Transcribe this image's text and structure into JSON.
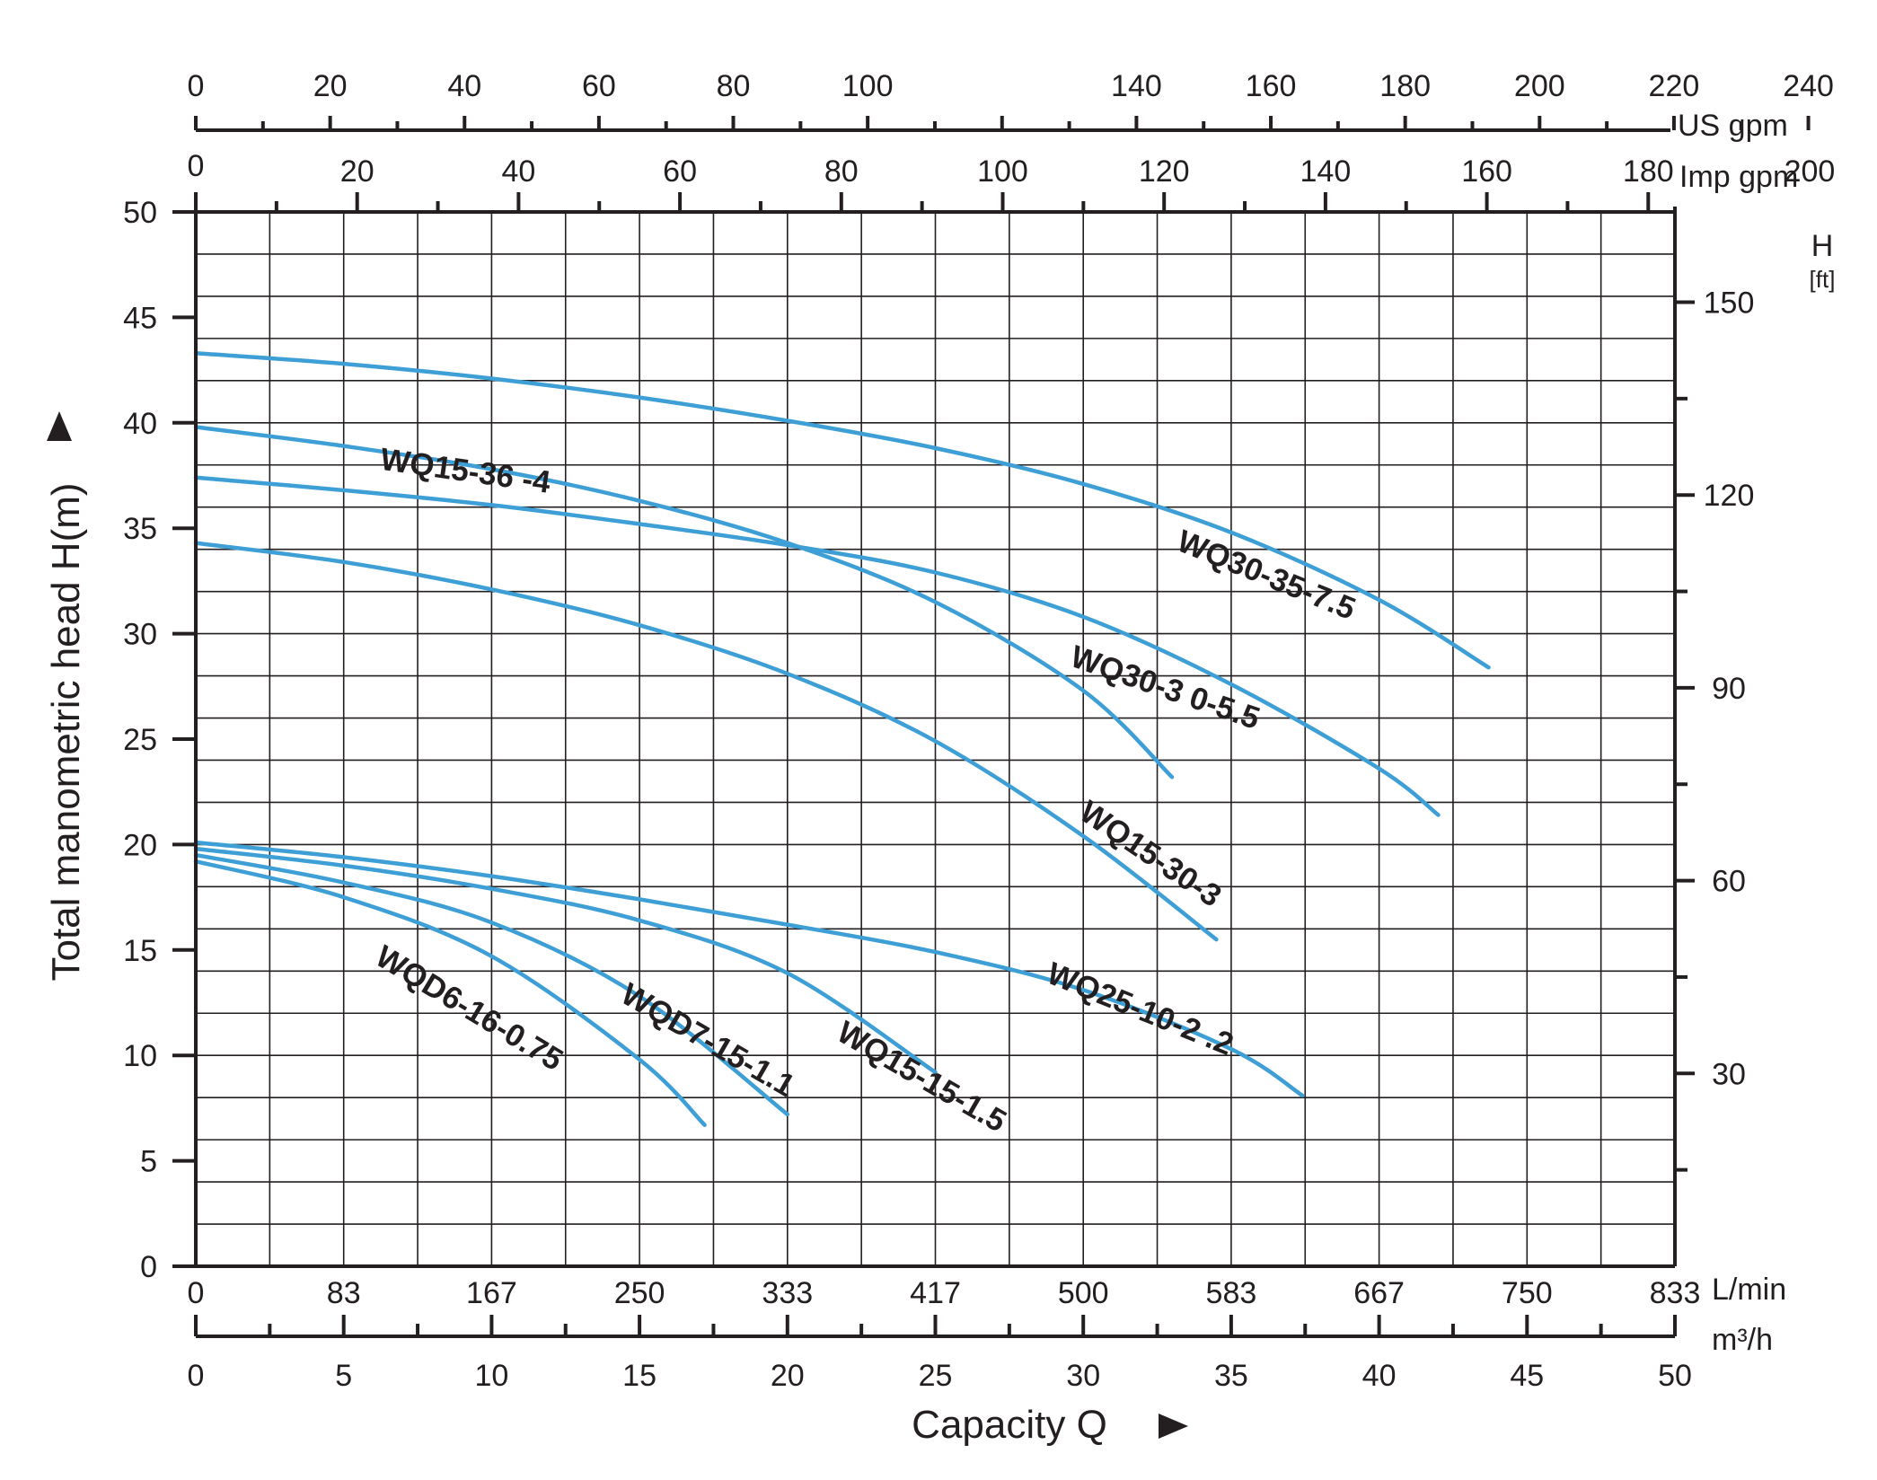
{
  "chart_data": {
    "type": "line",
    "xlabel": "Capacity Q",
    "ylabel": "Total manometric head H(m)",
    "x_unit": "m³/h",
    "y_unit": "m",
    "xlim": [
      0,
      50
    ],
    "ylim": [
      0,
      50
    ],
    "grid": true,
    "curve_color": "#3d9fd6",
    "axis_color": "#231f20",
    "x_ticks": [
      "0",
      "5",
      "10",
      "15",
      "20",
      "25",
      "30",
      "35",
      "40",
      "45",
      "50"
    ],
    "y_ticks": [
      "0",
      "5",
      "10",
      "15",
      "20",
      "25",
      "30",
      "35",
      "40",
      "45",
      "50"
    ],
    "lmin_axis": {
      "unit": "L/min",
      "ticks": [
        "0",
        "83",
        "167",
        "250",
        "333",
        "417",
        "500",
        "583",
        "667",
        "750",
        "833"
      ]
    },
    "m3h_axis": {
      "unit": "m³/h"
    },
    "usgpm_axis": {
      "unit": "US gpm",
      "ticks": [
        "0",
        "20",
        "40",
        "60",
        "80",
        "100",
        "140",
        "160",
        "180",
        "200",
        "220",
        "240"
      ]
    },
    "impgpm_axis": {
      "unit": "Imp gpm",
      "ticks": [
        "0",
        "20",
        "40",
        "60",
        "80",
        "100",
        "120",
        "140",
        "160",
        "180",
        "200"
      ]
    },
    "ft_axis": {
      "unit": "H",
      "unit2": "[ft]",
      "ticks": [
        "30",
        "60",
        "90",
        "120",
        "150"
      ]
    },
    "series": [
      {
        "name": "WQ30-35-7.5",
        "x": [
          0,
          5,
          10,
          15,
          20,
          25,
          30,
          35,
          40,
          43.7
        ],
        "y": [
          43.3,
          42.8,
          42.1,
          41.2,
          40.1,
          38.8,
          37.1,
          34.8,
          31.6,
          28.4
        ]
      },
      {
        "name": "WQ15-36 -4",
        "x": [
          0,
          5,
          10,
          15,
          20,
          25,
          30,
          33
        ],
        "y": [
          39.8,
          38.9,
          37.8,
          36.3,
          34.3,
          31.5,
          27.3,
          23.2
        ]
      },
      {
        "name": "WQ30-3 0-5.5",
        "x": [
          0,
          5,
          10,
          15,
          20,
          25,
          30,
          35,
          40,
          42
        ],
        "y": [
          37.4,
          36.8,
          36.1,
          35.2,
          34.2,
          32.9,
          30.8,
          27.6,
          23.6,
          21.4
        ]
      },
      {
        "name": "WQ15-30-3",
        "x": [
          0,
          5,
          10,
          15,
          20,
          25,
          30,
          34.5
        ],
        "y": [
          34.3,
          33.4,
          32.1,
          30.4,
          28.1,
          24.9,
          20.4,
          15.5
        ]
      },
      {
        "name": "WQ25-10-2 .2",
        "x": [
          0,
          5,
          10,
          15,
          20,
          25,
          30,
          35,
          37.4
        ],
        "y": [
          20.1,
          19.4,
          18.5,
          17.4,
          16.2,
          14.9,
          13.1,
          10.3,
          8.1
        ]
      },
      {
        "name": "WQ15-15-1.5",
        "x": [
          0,
          5,
          10,
          15,
          20,
          25
        ],
        "y": [
          19.8,
          19.0,
          17.9,
          16.4,
          13.9,
          9.2
        ]
      },
      {
        "name": "WQD7-15-1.1",
        "x": [
          0,
          5,
          10,
          15,
          20
        ],
        "y": [
          19.5,
          18.2,
          16.3,
          12.8,
          7.2
        ]
      },
      {
        "name": "WQD6-16-0.75",
        "x": [
          0,
          5,
          10,
          15,
          17.2
        ],
        "y": [
          19.2,
          17.5,
          14.7,
          9.8,
          6.7
        ]
      }
    ],
    "annotations": [
      {
        "text": "WQ15-36 -4",
        "at": [
          6.2,
          37.8
        ],
        "angle": 8
      },
      {
        "text": "WQ30-35-7.5",
        "at": [
          33.1,
          34.0
        ],
        "angle": 22
      },
      {
        "text": "WQ30-3 0-5.5",
        "at": [
          29.5,
          28.5
        ],
        "angle": 19
      },
      {
        "text": "WQ15-30-3",
        "at": [
          29.8,
          21.3
        ],
        "angle": 34
      },
      {
        "text": "WQ25-10-2 .2",
        "at": [
          28.7,
          13.5
        ],
        "angle": 22
      },
      {
        "text": "WQ15-15-1.5",
        "at": [
          21.6,
          10.8
        ],
        "angle": 30
      },
      {
        "text": "WQD7-15-1.1",
        "at": [
          14.3,
          12.6
        ],
        "angle": 30
      },
      {
        "text": "WQD6-16-0.75",
        "at": [
          6.0,
          14.4
        ],
        "angle": 31
      }
    ]
  }
}
